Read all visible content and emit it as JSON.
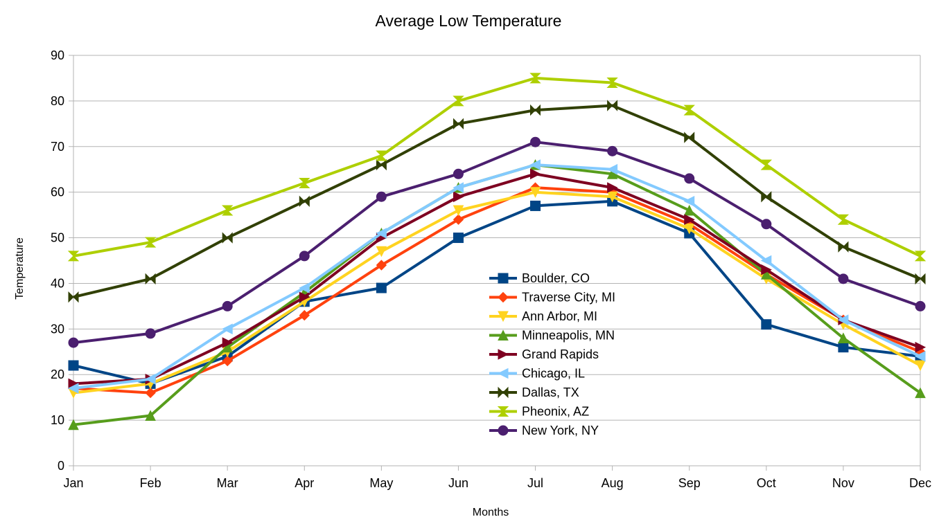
{
  "chart_data": {
    "type": "line",
    "title": "Average Low Temperature",
    "xlabel": "Months",
    "ylabel": "Temperature",
    "categories": [
      "Jan",
      "Feb",
      "Mar",
      "Apr",
      "May",
      "Jun",
      "Jul",
      "Aug",
      "Sep",
      "Oct",
      "Nov",
      "Dec"
    ],
    "ylim": [
      0,
      90
    ],
    "yticks": [
      0,
      10,
      20,
      30,
      40,
      50,
      60,
      70,
      80,
      90
    ],
    "grid": "horizontal",
    "legend_position": "center-right",
    "series": [
      {
        "name": "Boulder, CO",
        "color": "#004586",
        "marker": "square",
        "values": [
          22,
          18,
          24,
          36,
          39,
          50,
          57,
          58,
          51,
          31,
          26,
          24
        ]
      },
      {
        "name": "Traverse City, MI",
        "color": "#ff420e",
        "marker": "diamond",
        "values": [
          17,
          16,
          23,
          33,
          44,
          54,
          61,
          60,
          53,
          42,
          32,
          25
        ]
      },
      {
        "name": "Ann Arbor, MI",
        "color": "#ffd320",
        "marker": "triangle-down",
        "values": [
          16,
          18,
          25,
          36,
          47,
          56,
          60,
          59,
          52,
          41,
          31,
          22
        ]
      },
      {
        "name": "Minneapolis, MN",
        "color": "#579d1c",
        "marker": "triangle-up",
        "values": [
          9,
          11,
          26,
          38,
          51,
          61,
          66,
          64,
          56,
          42,
          28,
          16
        ]
      },
      {
        "name": "Grand Rapids",
        "color": "#7e0021",
        "marker": "triangle-right",
        "values": [
          18,
          19,
          27,
          37,
          50,
          59,
          64,
          61,
          54,
          43,
          32,
          26
        ]
      },
      {
        "name": "Chicago, IL",
        "color": "#83caff",
        "marker": "triangle-left",
        "values": [
          17,
          19,
          30,
          39,
          51,
          61,
          66,
          65,
          58,
          45,
          32,
          24
        ]
      },
      {
        "name": "Dallas, TX",
        "color": "#314004",
        "marker": "bowtie",
        "values": [
          37,
          41,
          50,
          58,
          66,
          75,
          78,
          79,
          72,
          59,
          48,
          41
        ]
      },
      {
        "name": "Pheonix, AZ",
        "color": "#aecf00",
        "marker": "hourglass",
        "values": [
          46,
          49,
          56,
          62,
          68,
          80,
          85,
          84,
          78,
          66,
          54,
          46
        ]
      },
      {
        "name": "New York, NY",
        "color": "#4b1f6f",
        "marker": "circle",
        "values": [
          27,
          29,
          35,
          46,
          59,
          64,
          71,
          69,
          63,
          53,
          41,
          35
        ]
      }
    ]
  }
}
